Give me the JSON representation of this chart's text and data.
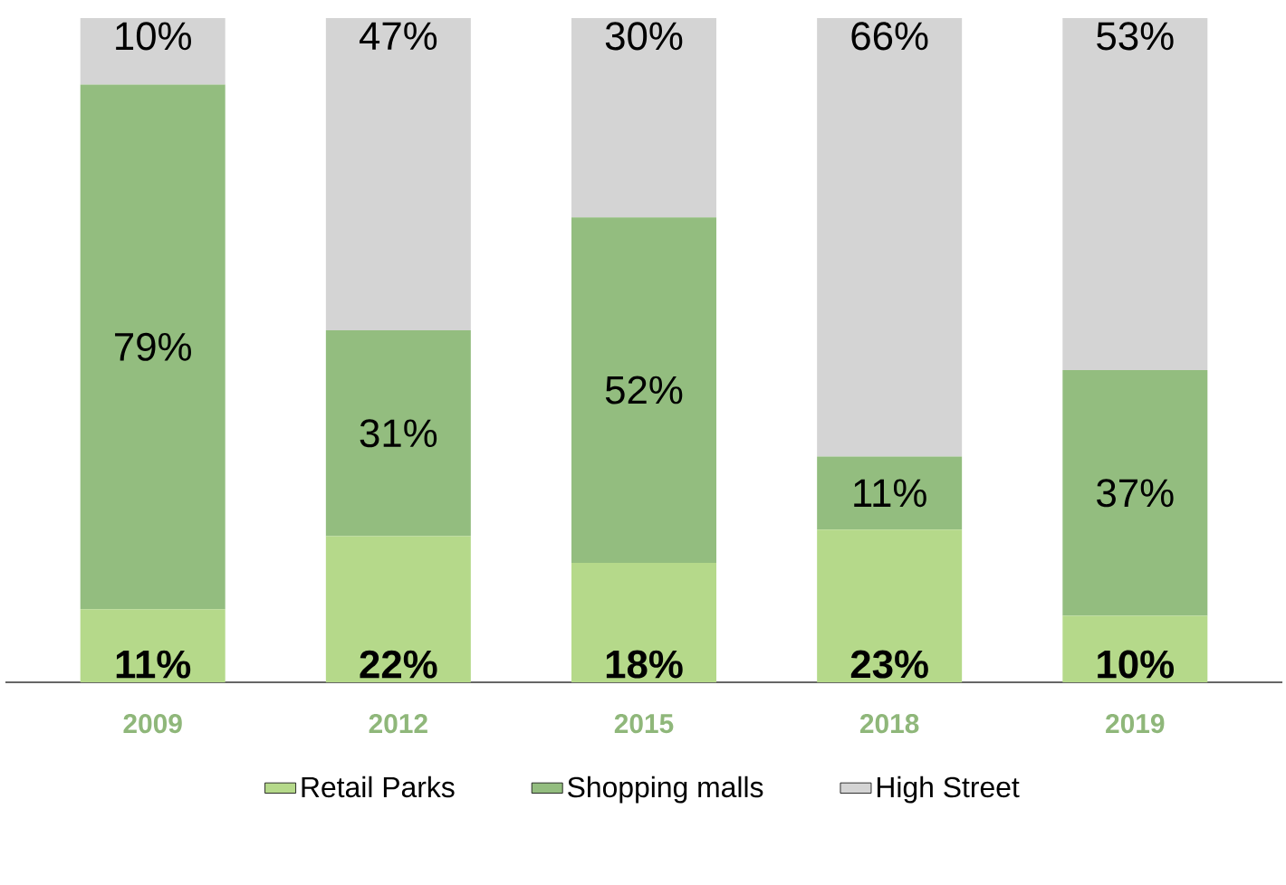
{
  "chart_data": {
    "type": "bar",
    "stacked": true,
    "categories": [
      "2009",
      "2012",
      "2015",
      "2018",
      "2019"
    ],
    "ylim": [
      0,
      100
    ],
    "tick_labels": "x",
    "legend": "bottom",
    "series": [
      {
        "name": "Retail Parks",
        "color": "#b5d98a",
        "values": [
          11,
          22,
          18,
          23,
          10
        ],
        "value_labels": [
          "11%",
          "22%",
          "18%",
          "23%",
          "10%"
        ]
      },
      {
        "name": "Shopping malls",
        "color": "#93bd7f",
        "values": [
          79,
          31,
          52,
          11,
          37
        ],
        "value_labels": [
          "79%",
          "31%",
          "52%",
          "11%",
          "37%"
        ]
      },
      {
        "name": "High Street",
        "color": "#d4d4d4",
        "values": [
          10,
          47,
          30,
          66,
          53
        ],
        "value_labels": [
          "10%",
          "47%",
          "30%",
          "66%",
          "53%"
        ]
      }
    ]
  }
}
